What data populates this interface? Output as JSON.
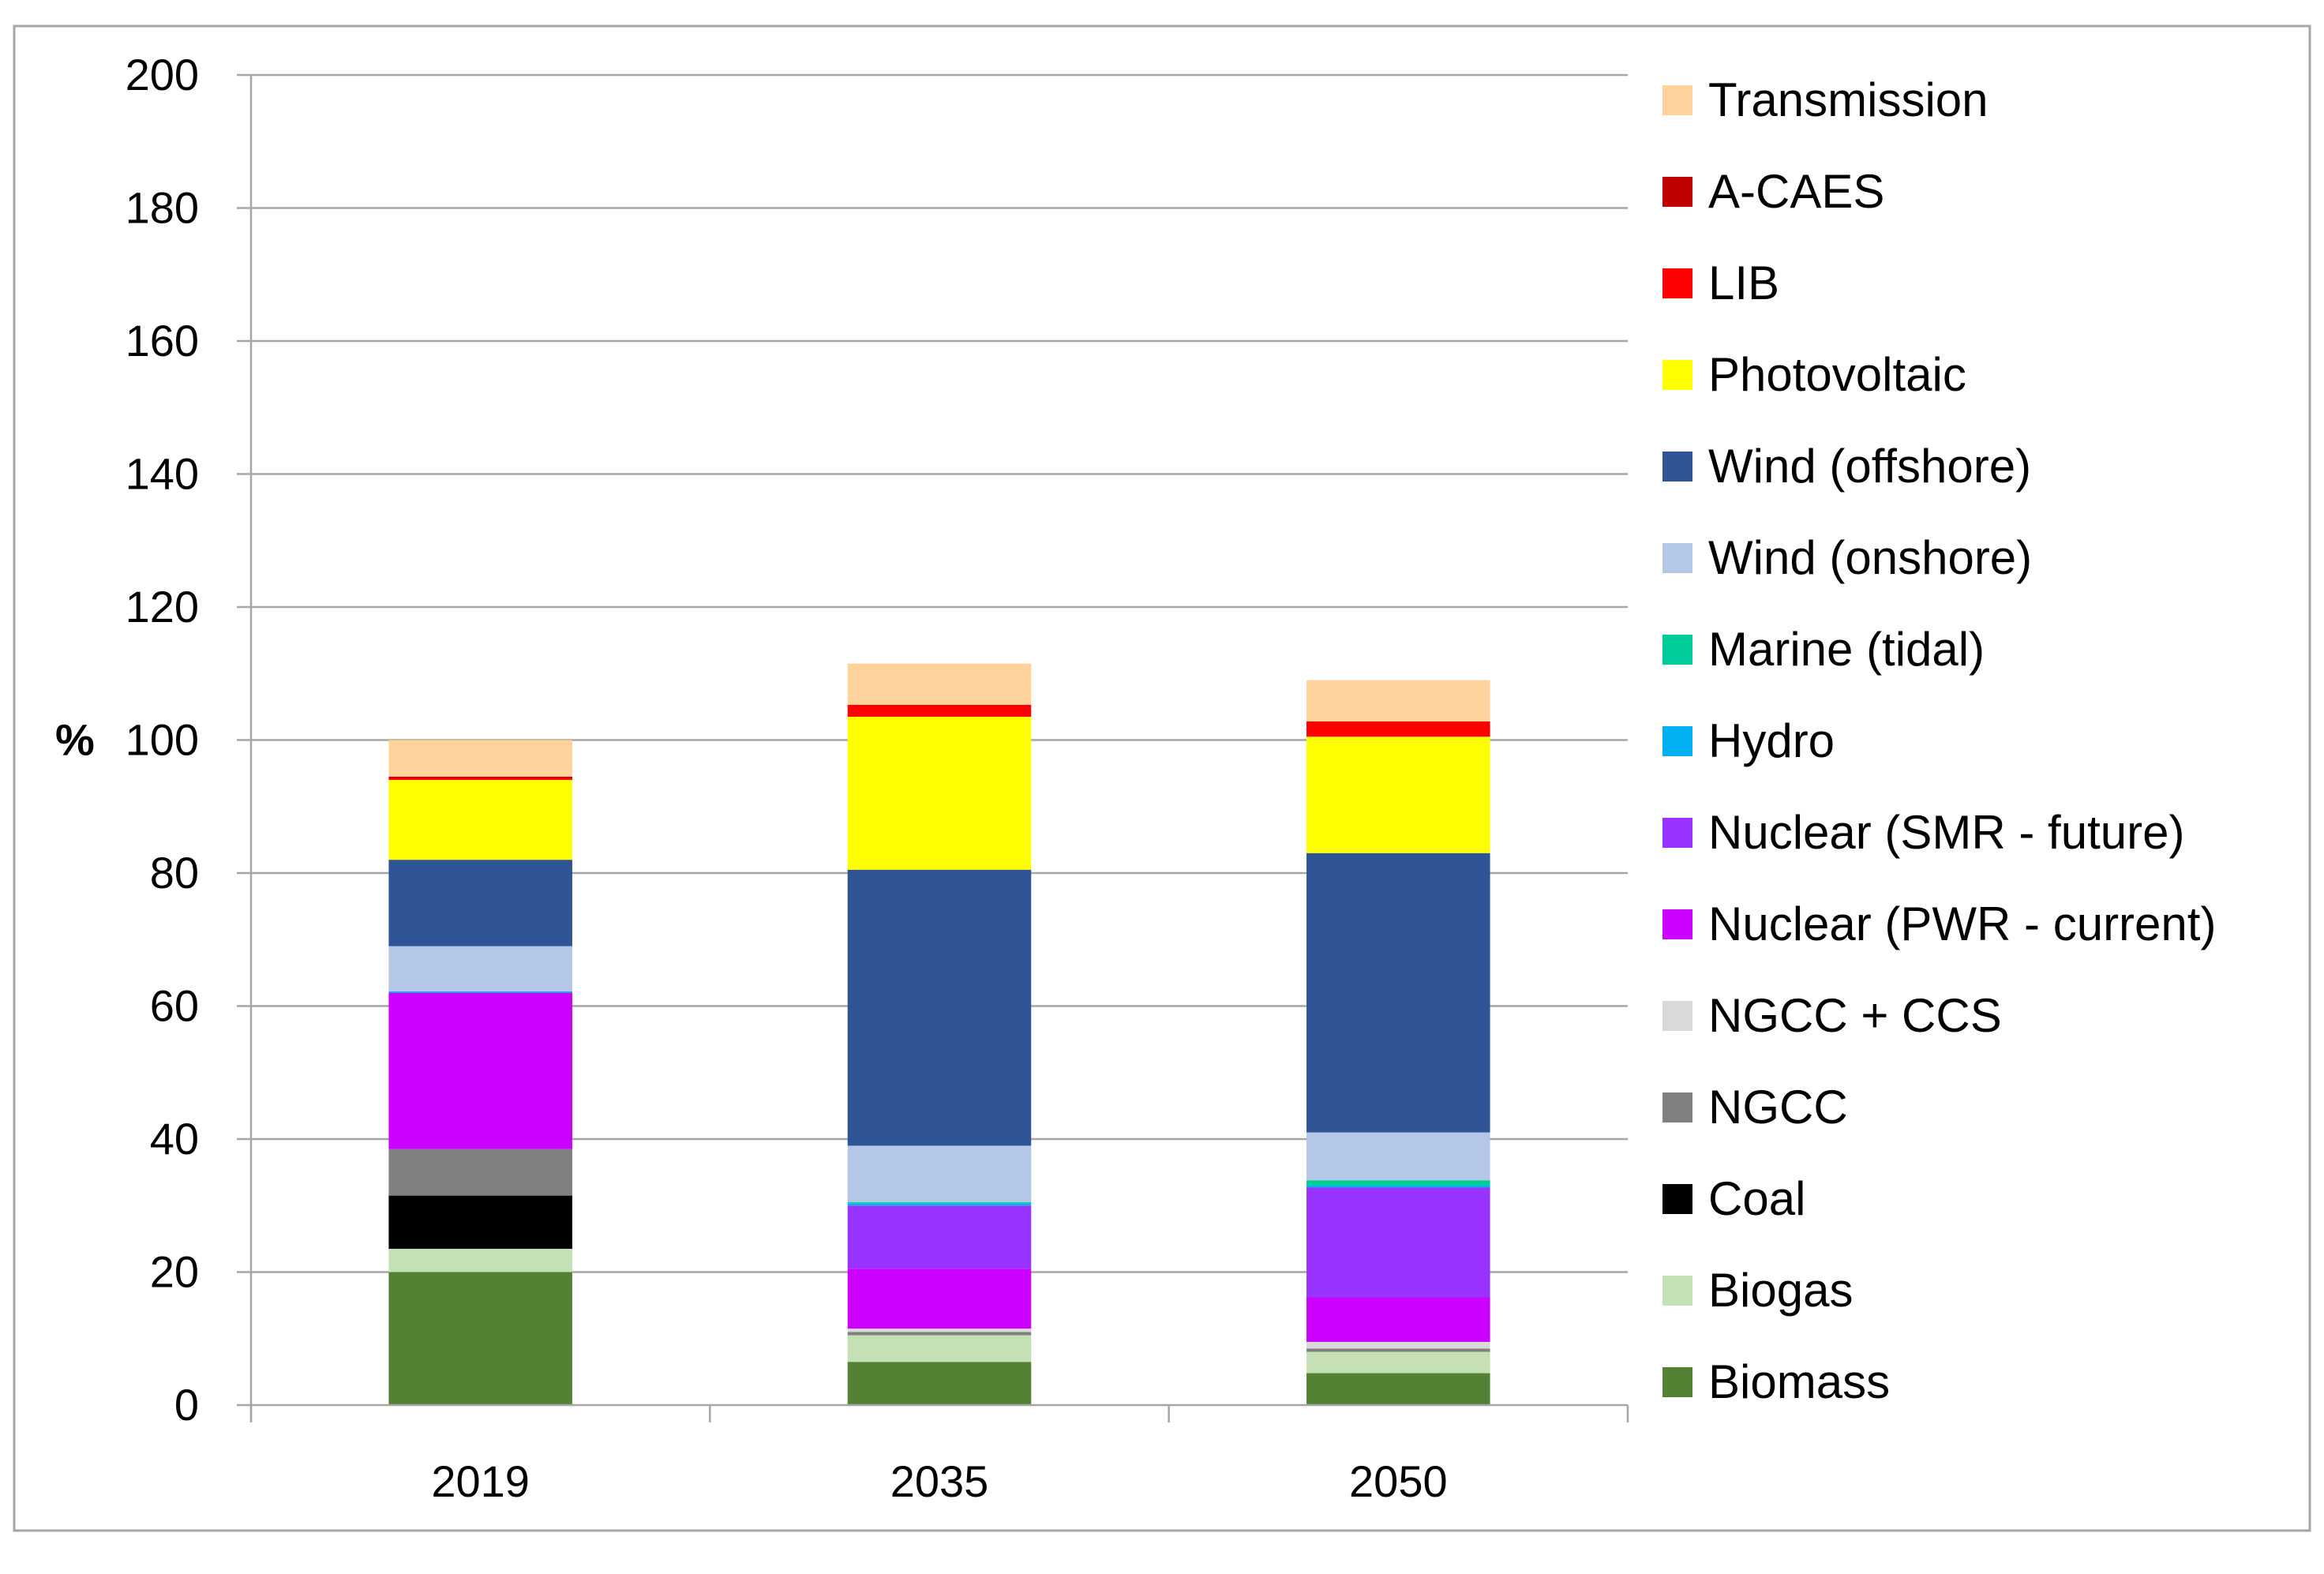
{
  "chart_data": {
    "type": "bar",
    "stacked": true,
    "categories": [
      "2019",
      "2035",
      "2050"
    ],
    "ylabel": "%",
    "ylim": [
      0,
      200
    ],
    "yticks": [
      0,
      20,
      40,
      60,
      80,
      100,
      120,
      140,
      160,
      180,
      200
    ],
    "grid": true,
    "legend_position": "right",
    "series": [
      {
        "name": "Biomass",
        "color": "#548235",
        "values": [
          20.0,
          6.5,
          4.8
        ]
      },
      {
        "name": "Biogas",
        "color": "#C5E0B4",
        "values": [
          3.5,
          4.0,
          3.2
        ]
      },
      {
        "name": "Coal",
        "color": "#000000",
        "values": [
          8.0,
          0.0,
          0.0
        ]
      },
      {
        "name": "NGCC",
        "color": "#808080",
        "values": [
          7.0,
          0.5,
          0.5
        ]
      },
      {
        "name": "NGCC + CCS",
        "color": "#D9D9D9",
        "values": [
          0.0,
          0.5,
          1.0
        ]
      },
      {
        "name": "Nuclear (PWR - current)",
        "color": "#CC00FF",
        "values": [
          23.5,
          9.0,
          6.7
        ]
      },
      {
        "name": "Nuclear (SMR - future)",
        "color": "#9933FF",
        "values": [
          0.0,
          9.5,
          16.5
        ]
      },
      {
        "name": "Hydro",
        "color": "#00B0F0",
        "values": [
          0.2,
          0.3,
          0.3
        ]
      },
      {
        "name": "Marine (tidal)",
        "color": "#00CC99",
        "values": [
          0.0,
          0.2,
          0.8
        ]
      },
      {
        "name": "Wind (onshore)",
        "color": "#B4C7E7",
        "values": [
          6.8,
          8.5,
          7.2
        ]
      },
      {
        "name": "Wind (offshore)",
        "color": "#2F5597",
        "values": [
          13.0,
          41.5,
          42.0
        ]
      },
      {
        "name": "Photovoltaic",
        "color": "#FFFF00",
        "values": [
          12.0,
          23.0,
          17.5
        ]
      },
      {
        "name": "LIB",
        "color": "#FF0000",
        "values": [
          0.3,
          1.8,
          2.3
        ]
      },
      {
        "name": "A-CAES",
        "color": "#C00000",
        "values": [
          0.2,
          0.0,
          0.0
        ]
      },
      {
        "name": "Transmission",
        "color": "#FFD39B",
        "values": [
          5.5,
          6.2,
          6.2
        ]
      }
    ]
  }
}
